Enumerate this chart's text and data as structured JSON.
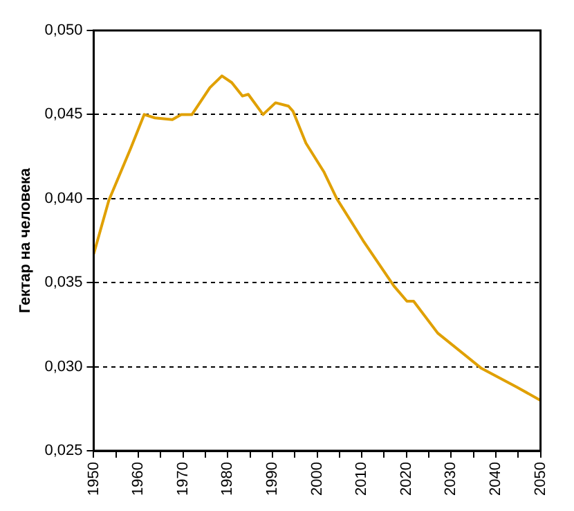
{
  "chart_data": {
    "type": "line",
    "ylabel": "Гектар на человека",
    "x": [
      1950,
      1953.4,
      1958.3,
      1961.3,
      1963.7,
      1967.6,
      1969.6,
      1972,
      1973.5,
      1976,
      1978.7,
      1980.9,
      1983.3,
      1984.6,
      1987.9,
      1990.7,
      1993.6,
      1994.6,
      1997.5,
      2001.5,
      2004.4,
      2010.3,
      2017.2,
      2020.1,
      2021.6,
      2027,
      2036.8,
      2044.6,
      2050
    ],
    "series": [
      {
        "color": "#e0a000",
        "values": [
          0.0367,
          0.0399,
          0.043,
          0.045,
          0.0448,
          0.0447,
          0.045,
          0.045,
          0.0456,
          0.0466,
          0.0473,
          0.0469,
          0.0461,
          0.0462,
          0.045,
          0.0457,
          0.0455,
          0.0452,
          0.0433,
          0.0416,
          0.04,
          0.0375,
          0.0348,
          0.0339,
          0.0339,
          0.032,
          0.0299,
          0.0288,
          0.028
        ]
      }
    ],
    "xlim": [
      1950,
      2050
    ],
    "xticks": [
      1950,
      {
        "value": 1955,
        "label": null
      },
      1960,
      {
        "value": 1965,
        "label": null
      },
      1970,
      {
        "value": 1975,
        "label": null
      },
      1980,
      {
        "value": 1985,
        "label": null
      },
      1990,
      {
        "value": 1995,
        "label": null
      },
      2000,
      {
        "value": 2005,
        "label": null
      },
      2010,
      {
        "value": 2015,
        "label": null
      },
      2020,
      {
        "value": 2025,
        "label": null
      },
      2030,
      {
        "value": 2035,
        "label": null
      },
      2040,
      {
        "value": 2045,
        "label": null
      },
      2050
    ],
    "ylim": [
      0.025,
      0.05
    ],
    "yticks": [
      {
        "value": 0.025,
        "label": "0,025"
      },
      {
        "value": 0.03,
        "label": "0,030"
      },
      {
        "value": 0.035,
        "label": "0,035"
      },
      {
        "value": 0.04,
        "label": "0,040"
      },
      {
        "value": 0.045,
        "label": "0,045"
      },
      {
        "value": 0.05,
        "label": "0,050"
      }
    ],
    "grid": "y",
    "legend": false,
    "marker": "none",
    "line_style": "solid"
  }
}
